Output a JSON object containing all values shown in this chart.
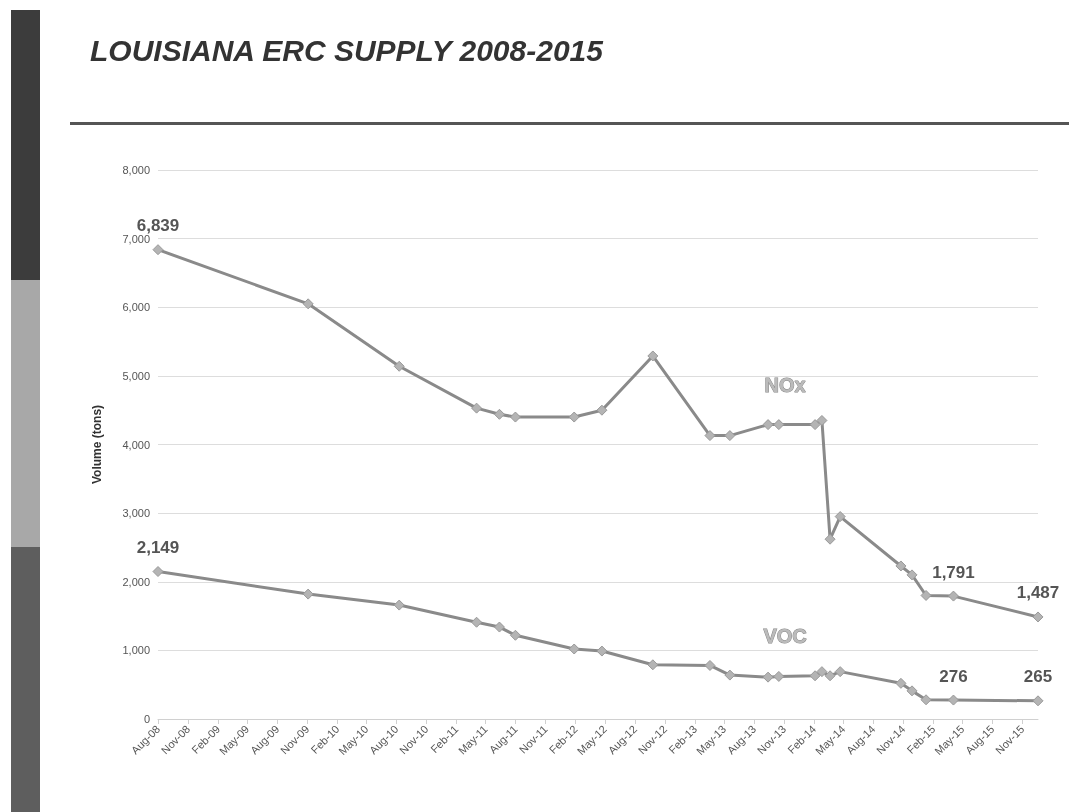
{
  "chart_data": {
    "type": "line",
    "title": "LOUISIANA ERC SUPPLY 2008-2015",
    "ylabel": "Volume (tons)",
    "x": [
      "2008-08-01",
      "2009-11-04",
      "2010-08-10",
      "2011-04-04",
      "2011-06-13",
      "2011-08-01",
      "2012-01-28",
      "2012-04-22",
      "2012-09-25",
      "2013-03-19",
      "2013-05-19",
      "2013-09-13",
      "2013-10-16",
      "2014-02-04",
      "2014-02-25",
      "2014-03-22",
      "2014-04-22",
      "2014-10-25",
      "2014-11-28",
      "2015-01-10",
      "2015-04-04",
      "2015-12-19"
    ],
    "series": [
      {
        "name": "NOx",
        "color": "#8a8a8a",
        "values": [
          6839,
          6050,
          5140,
          4530,
          4440,
          4400,
          4400,
          4500,
          5290,
          4130,
          4130,
          4290,
          4290,
          4290,
          4350,
          2620,
          2950,
          2230,
          2100,
          1800,
          1791,
          1487
        ],
        "value_labels": [
          "6,839",
          null,
          null,
          null,
          null,
          null,
          null,
          null,
          null,
          null,
          null,
          null,
          null,
          null,
          null,
          null,
          null,
          null,
          null,
          null,
          "1,791",
          "1,487"
        ]
      },
      {
        "name": "VOC",
        "color": "#8a8a8a",
        "values": [
          2149,
          1820,
          1660,
          1410,
          1340,
          1220,
          1020,
          990,
          790,
          780,
          640,
          610,
          620,
          630,
          690,
          630,
          690,
          520,
          410,
          280,
          276,
          265
        ],
        "value_labels": [
          "2,149",
          null,
          null,
          null,
          null,
          null,
          null,
          null,
          null,
          null,
          null,
          null,
          null,
          null,
          null,
          null,
          null,
          null,
          null,
          null,
          "276",
          "265"
        ]
      }
    ],
    "xlim": [
      "2008-08-01",
      "2015-12-19"
    ],
    "xticks": [
      {
        "value": "2008-08-01",
        "label": "Aug-08"
      },
      {
        "value": "2008-11-01",
        "label": "Nov-08"
      },
      {
        "value": "2009-02-01",
        "label": "Feb-09"
      },
      {
        "value": "2009-05-01",
        "label": "May-09"
      },
      {
        "value": "2009-08-01",
        "label": "Aug-09"
      },
      {
        "value": "2009-11-01",
        "label": "Nov-09"
      },
      {
        "value": "2010-02-01",
        "label": "Feb-10"
      },
      {
        "value": "2010-05-01",
        "label": "May-10"
      },
      {
        "value": "2010-08-01",
        "label": "Aug-10"
      },
      {
        "value": "2010-11-01",
        "label": "Nov-10"
      },
      {
        "value": "2011-02-01",
        "label": "Feb-11"
      },
      {
        "value": "2011-05-01",
        "label": "May-11"
      },
      {
        "value": "2011-08-01",
        "label": "Aug-11"
      },
      {
        "value": "2011-11-01",
        "label": "Nov-11"
      },
      {
        "value": "2012-02-01",
        "label": "Feb-12"
      },
      {
        "value": "2012-05-01",
        "label": "May-12"
      },
      {
        "value": "2012-08-01",
        "label": "Aug-12"
      },
      {
        "value": "2012-11-01",
        "label": "Nov-12"
      },
      {
        "value": "2013-02-01",
        "label": "Feb-13"
      },
      {
        "value": "2013-05-01",
        "label": "May-13"
      },
      {
        "value": "2013-08-01",
        "label": "Aug-13"
      },
      {
        "value": "2013-11-01",
        "label": "Nov-13"
      },
      {
        "value": "2014-02-01",
        "label": "Feb-14"
      },
      {
        "value": "2014-05-01",
        "label": "May-14"
      },
      {
        "value": "2014-08-01",
        "label": "Aug-14"
      },
      {
        "value": "2014-11-01",
        "label": "Nov-14"
      },
      {
        "value": "2015-02-01",
        "label": "Feb-15"
      },
      {
        "value": "2015-05-01",
        "label": "May-15"
      },
      {
        "value": "2015-08-01",
        "label": "Aug-15"
      },
      {
        "value": "2015-11-01",
        "label": "Nov-15"
      }
    ],
    "ylim": [
      0,
      8000
    ],
    "yticks": [
      0,
      {
        "value": 1000,
        "label": "1,000"
      },
      {
        "value": 2000,
        "label": "2,000"
      },
      {
        "value": 3000,
        "label": "3,000"
      },
      {
        "value": 4000,
        "label": "4,000"
      },
      {
        "value": 5000,
        "label": "5,000"
      },
      {
        "value": 6000,
        "label": "6,000"
      },
      {
        "value": 7000,
        "label": "7,000"
      },
      {
        "value": 8000,
        "label": "8,000"
      }
    ],
    "grid": "y",
    "marker": "diamond",
    "line_style": "solid"
  }
}
